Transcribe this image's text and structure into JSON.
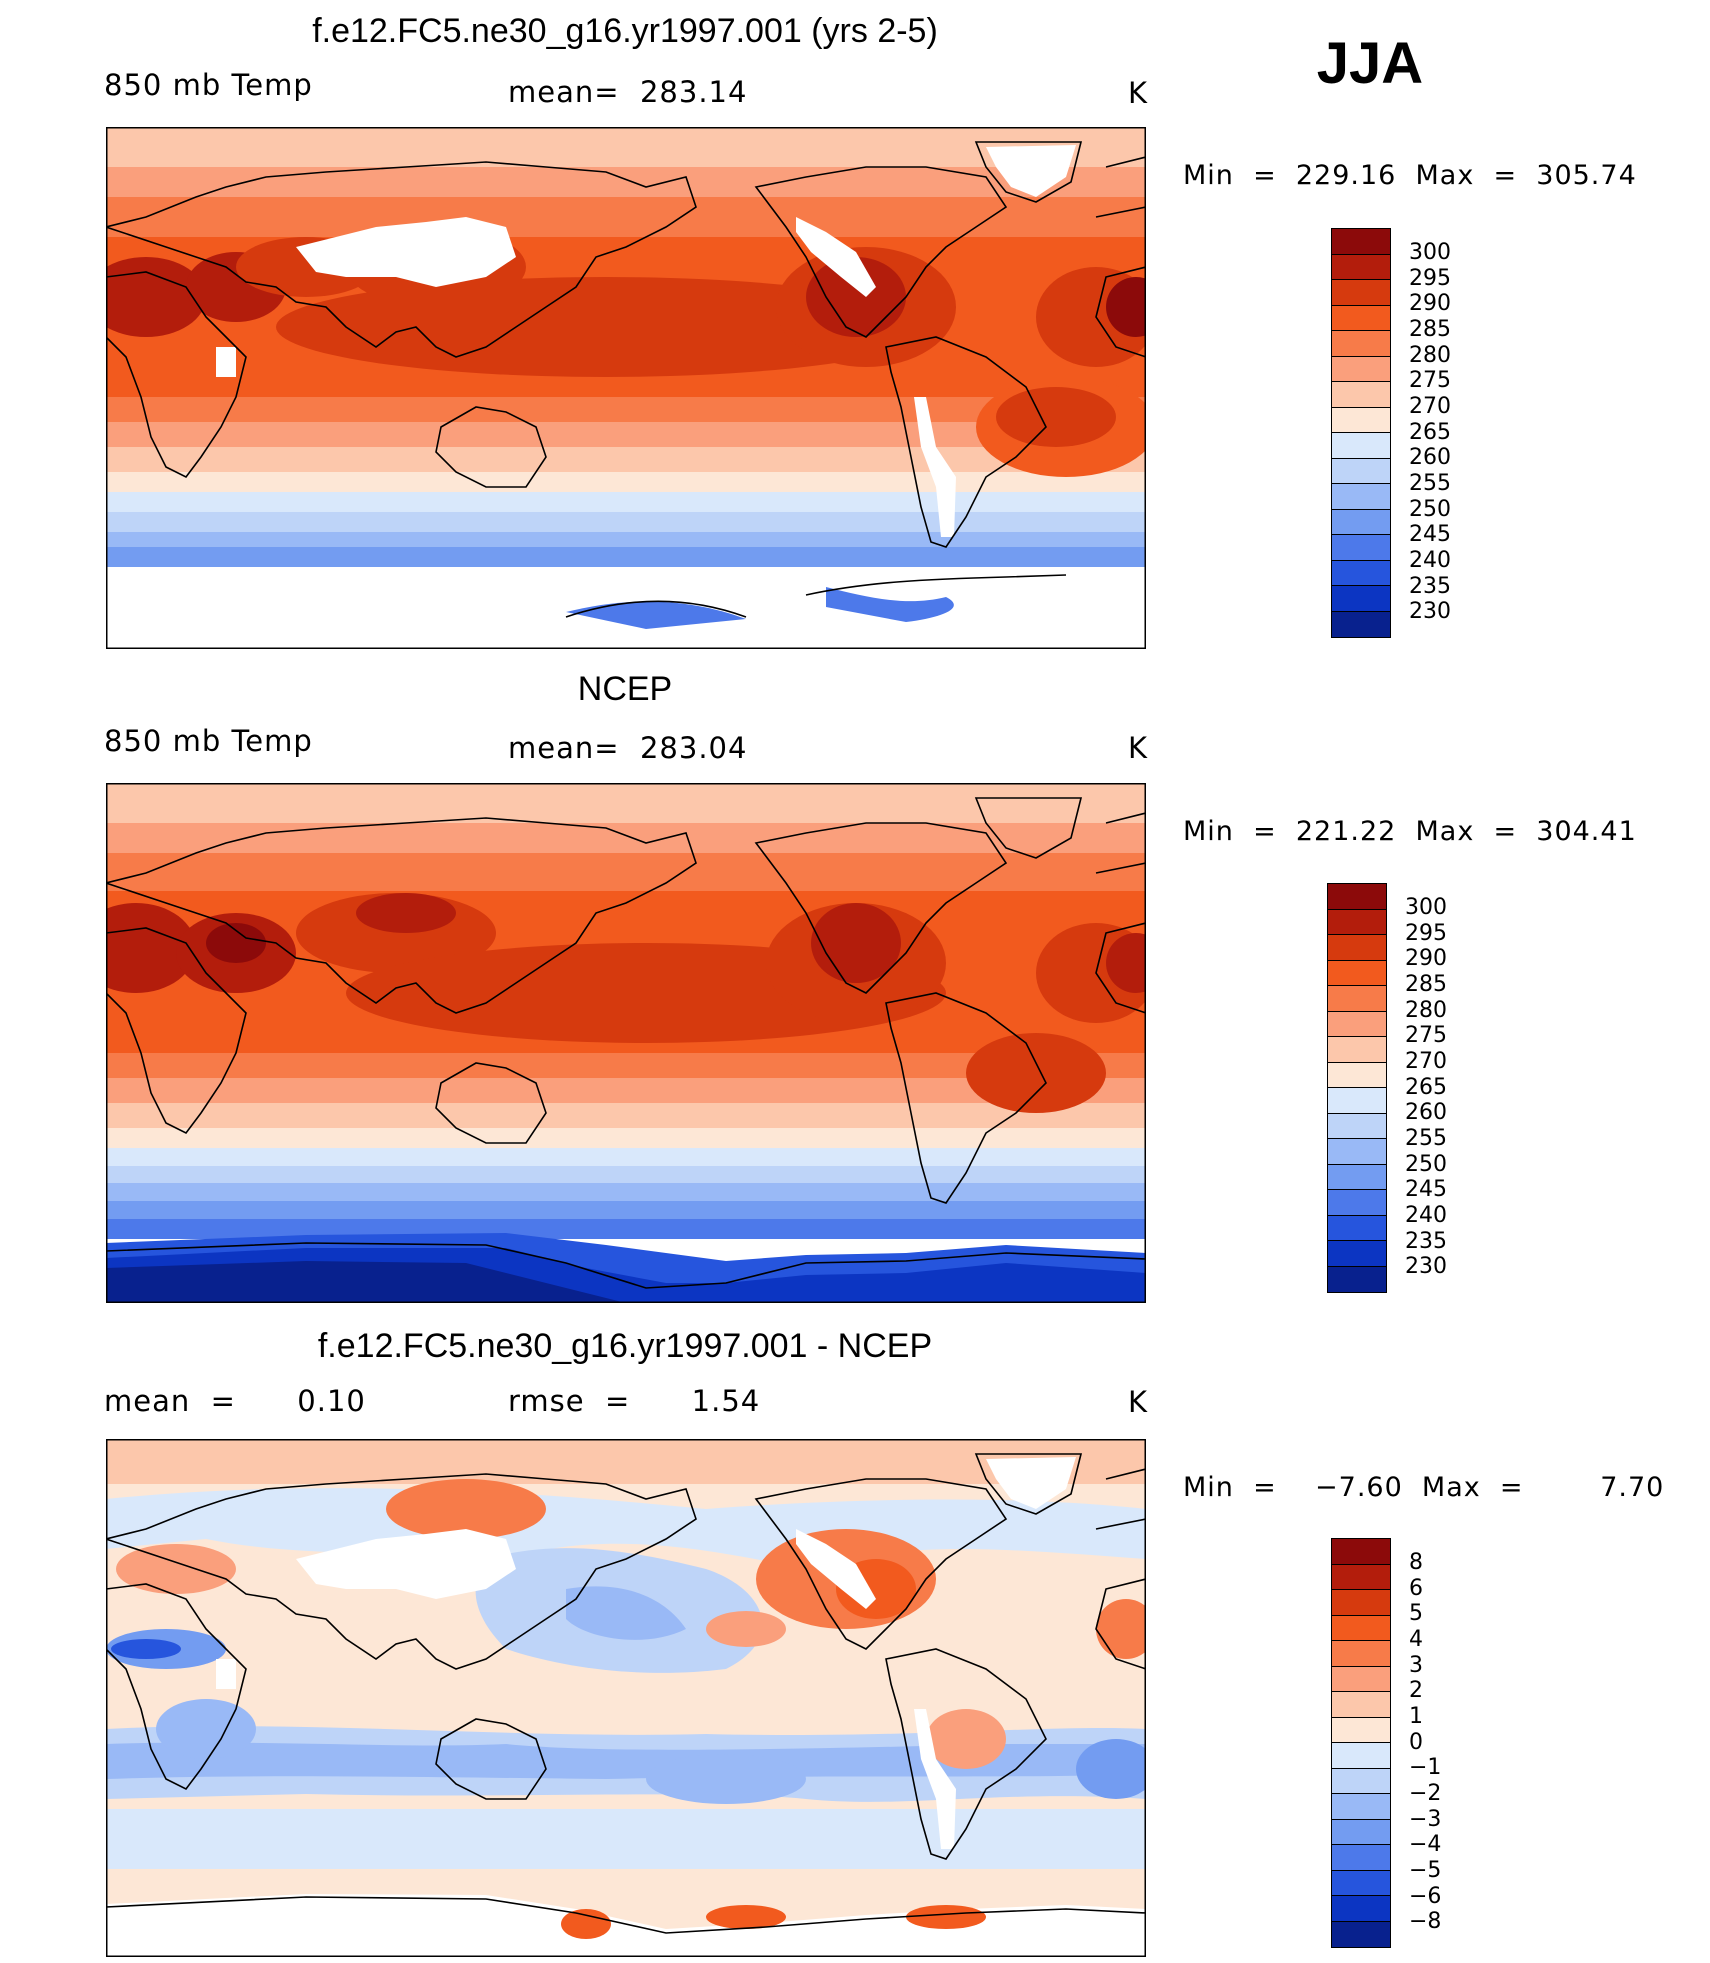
{
  "season": "JJA",
  "panels": [
    {
      "title": "f.e12.FC5.ne30_g16.yr1997.001 (yrs 2-5)",
      "left_label": "850 mb Temp",
      "center_label": "mean=  283.14",
      "units": "K",
      "minmax": "Min  =  229.16  Max  =  305.74",
      "levels": [
        "300",
        "295",
        "290",
        "285",
        "280",
        "275",
        "270",
        "265",
        "260",
        "255",
        "250",
        "245",
        "240",
        "235",
        "230"
      ]
    },
    {
      "title": "NCEP",
      "left_label": "850 mb Temp",
      "center_label": "mean=  283.04",
      "units": "K",
      "minmax": "Min  =  221.22  Max  =  304.41",
      "levels": [
        "300",
        "295",
        "290",
        "285",
        "280",
        "275",
        "270",
        "265",
        "260",
        "255",
        "250",
        "245",
        "240",
        "235",
        "230"
      ]
    },
    {
      "title": "f.e12.FC5.ne30_g16.yr1997.001 - NCEP",
      "left_label": "mean  =      0.10",
      "center_label": "rmse  =      1.54",
      "units": "K",
      "minmax": "Min  =    −7.60  Max  =        7.70",
      "levels": [
        "8",
        "6",
        "5",
        "4",
        "3",
        "2",
        "1",
        "0",
        "−1",
        "−2",
        "−3",
        "−4",
        "−5",
        "−6",
        "−8"
      ]
    }
  ],
  "colors": {
    "abs_scale": [
      "#8c0a0a",
      "#b31d0c",
      "#d63a0e",
      "#f25a1e",
      "#f77b49",
      "#fa9f7c",
      "#fcc7ab",
      "#fde7d6",
      "#d9e8fb",
      "#bed4f8",
      "#99b9f6",
      "#739cf1",
      "#4d79ea",
      "#2655dd",
      "#0c35c2",
      "#08218e"
    ],
    "diff_scale": [
      "#8c0a0a",
      "#b31d0c",
      "#d63a0e",
      "#f25a1e",
      "#f77b49",
      "#fa9f7c",
      "#fcc7ab",
      "#fde7d6",
      "#d9e8fb",
      "#bed4f8",
      "#99b9f6",
      "#739cf1",
      "#4d79ea",
      "#2655dd",
      "#0c35c2",
      "#08218e"
    ]
  }
}
